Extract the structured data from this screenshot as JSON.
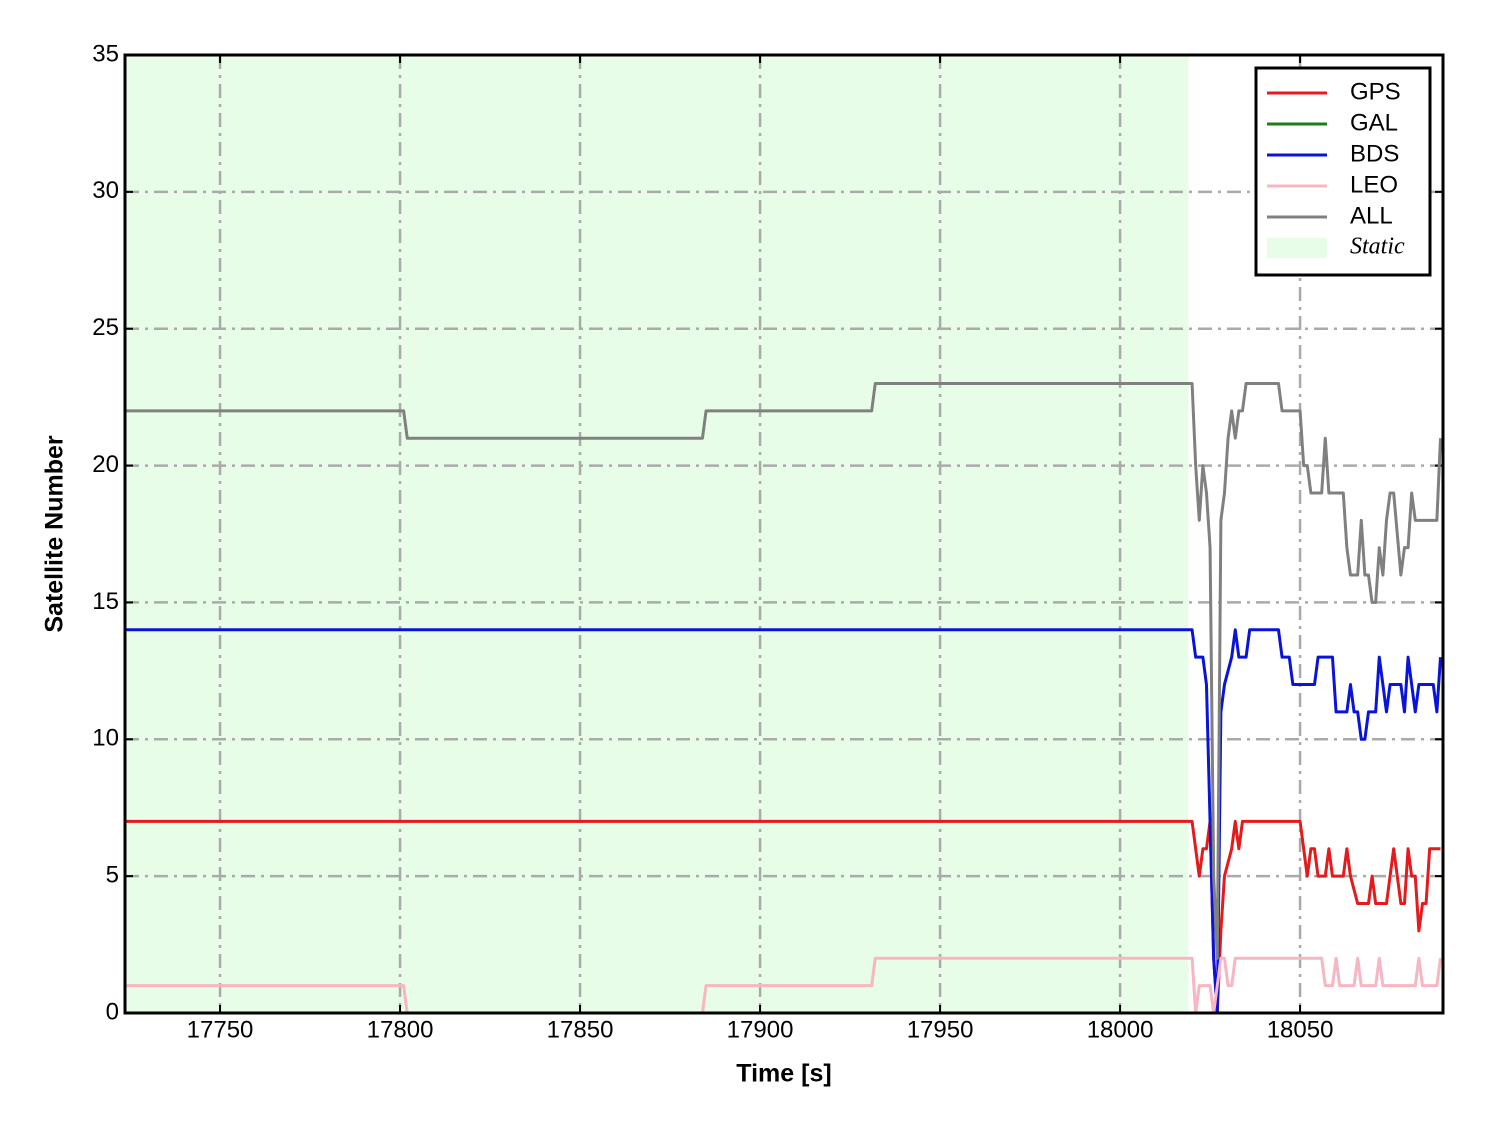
{
  "chart_data": {
    "type": "line",
    "xlabel": "Time [s]",
    "ylabel": "Satellite Number",
    "xlim": [
      17723.6,
      18089.7
    ],
    "ylim": [
      0,
      35
    ],
    "xticks": [
      17750,
      17800,
      17850,
      17900,
      17950,
      18000,
      18050
    ],
    "yticks": [
      0,
      5,
      10,
      15,
      20,
      25,
      30,
      35
    ],
    "grid": true,
    "legend": "upper right",
    "shaded": {
      "label": "Static",
      "color": "#e8fde8",
      "xrange": [
        17723.6,
        18019
      ]
    },
    "series": [
      {
        "name": "GPS",
        "color": "#e41a1c",
        "x": [
          17724,
          18020,
          18022,
          18023,
          18024,
          18025,
          18026,
          18027,
          18028,
          18029,
          18031,
          18032,
          18033,
          18034,
          18050,
          18052,
          18053,
          18054,
          18055,
          18057,
          18058,
          18059,
          18062,
          18063,
          18064,
          18066,
          18069,
          18070,
          18071,
          18074,
          18075,
          18076,
          18077,
          18078,
          18079,
          18080,
          18081,
          18082,
          18083,
          18084,
          18085,
          18086,
          18089
        ],
        "values": [
          7,
          7,
          5,
          6,
          6,
          7,
          2,
          0,
          3,
          5,
          6,
          7,
          6,
          7,
          7,
          5,
          6,
          6,
          5,
          5,
          6,
          5,
          5,
          6,
          5,
          4,
          4,
          5,
          4,
          4,
          5,
          6,
          5,
          4,
          4,
          6,
          5,
          5,
          3,
          4,
          4,
          6,
          6
        ]
      },
      {
        "name": "GAL",
        "color": "#1a7f1a",
        "x": [
          17724,
          18089
        ],
        "values": [
          0,
          0
        ]
      },
      {
        "name": "BDS",
        "color": "#0a14d8",
        "x": [
          17724,
          18020,
          18021,
          18023,
          18024,
          18025,
          18026,
          18027,
          18028,
          18029,
          18031,
          18032,
          18033,
          18035,
          18036,
          18044,
          18045,
          18047,
          18048,
          18054,
          18055,
          18059,
          18060,
          18063,
          18064,
          18065,
          18066,
          18067,
          18068,
          18069,
          18071,
          18072,
          18073,
          18074,
          18075,
          18078,
          18079,
          18080,
          18082,
          18083,
          18087,
          18088,
          18089
        ],
        "values": [
          14,
          14,
          13,
          13,
          12,
          7,
          2,
          0,
          11,
          12,
          13,
          14,
          13,
          13,
          14,
          14,
          13,
          13,
          12,
          12,
          13,
          13,
          11,
          11,
          12,
          11,
          11,
          10,
          10,
          11,
          11,
          13,
          12,
          11,
          12,
          12,
          11,
          13,
          11,
          12,
          12,
          11,
          13
        ]
      },
      {
        "name": "LEO",
        "color": "#f7b6c2",
        "x": [
          17724,
          17801,
          17802,
          17884,
          17885,
          17931,
          17932,
          18020,
          18021,
          18022,
          18025,
          18026,
          18027,
          18028,
          18029,
          18030,
          18031,
          18032,
          18056,
          18057,
          18059,
          18060,
          18061,
          18065,
          18066,
          18067,
          18071,
          18072,
          18073,
          18082,
          18083,
          18084,
          18088,
          18089
        ],
        "values": [
          1,
          1,
          0,
          0,
          1,
          1,
          2,
          2,
          0,
          1,
          1,
          0,
          1,
          2,
          2,
          1,
          1,
          2,
          2,
          1,
          1,
          2,
          1,
          1,
          2,
          1,
          1,
          2,
          1,
          1,
          2,
          1,
          1,
          2
        ]
      },
      {
        "name": "ALL",
        "color": "#808080",
        "x": [
          17724,
          17801,
          17802,
          17884,
          17885,
          17931,
          17932,
          18020,
          18021,
          18022,
          18023,
          18024,
          18025,
          18026,
          18027,
          18028,
          18029,
          18030,
          18031,
          18032,
          18033,
          18034,
          18035,
          18044,
          18045,
          18050,
          18051,
          18052,
          18053,
          18056,
          18057,
          18058,
          18062,
          18063,
          18064,
          18066,
          18067,
          18068,
          18069,
          18070,
          18071,
          18072,
          18073,
          18074,
          18075,
          18076,
          18078,
          18079,
          18080,
          18081,
          18082,
          18088,
          18089
        ],
        "values": [
          22,
          22,
          21,
          21,
          22,
          22,
          23,
          23,
          20,
          18,
          20,
          19,
          17,
          5,
          2,
          18,
          19,
          21,
          22,
          21,
          22,
          22,
          23,
          23,
          22,
          22,
          20,
          20,
          19,
          19,
          21,
          19,
          19,
          17,
          16,
          16,
          18,
          16,
          16,
          15,
          15,
          17,
          16,
          18,
          19,
          19,
          16,
          17,
          17,
          19,
          18,
          18,
          21
        ]
      }
    ]
  }
}
